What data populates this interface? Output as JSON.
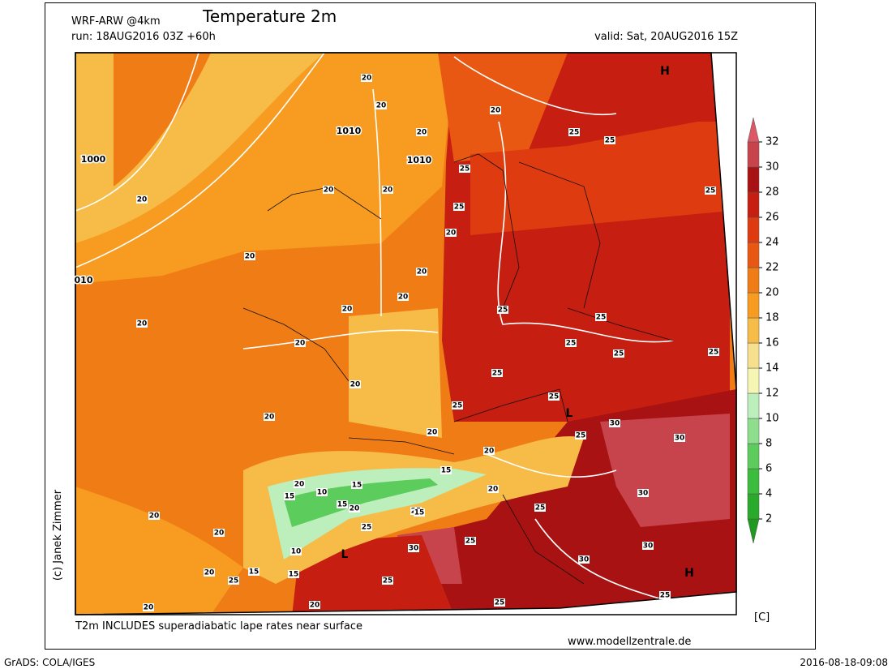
{
  "header": {
    "model": "WRF-ARW @4km",
    "title": "Temperature 2m",
    "run": "run: 18AUG2016 03Z +60h",
    "valid": "valid: Sat, 20AUG2016 15Z"
  },
  "map": {
    "labels": [
      "H",
      "H",
      "L",
      "L",
      "1010",
      "1010",
      "1000",
      "010",
      "20",
      "20",
      "20",
      "20",
      "20",
      "20",
      "20",
      "20",
      "20",
      "20",
      "20",
      "20",
      "20",
      "20",
      "20",
      "20",
      "20",
      "20",
      "20",
      "20",
      "20",
      "20",
      "20",
      "20",
      "20",
      "20",
      "25",
      "25",
      "25",
      "25",
      "25",
      "25",
      "25",
      "25",
      "25",
      "25",
      "25",
      "25",
      "25",
      "25",
      "25",
      "25",
      "25",
      "25",
      "25",
      "25",
      "25",
      "25",
      "30",
      "30",
      "30",
      "30",
      "30",
      "30",
      "15",
      "15",
      "15",
      "15",
      "15",
      "15",
      "15",
      "10",
      "10"
    ]
  },
  "colorbar": {
    "unit": "[C]",
    "ticks": [
      2,
      4,
      6,
      8,
      10,
      12,
      14,
      16,
      18,
      20,
      22,
      24,
      26,
      28,
      30,
      32
    ],
    "colors": [
      "#1e9a1e",
      "#2aaa2a",
      "#3cbc3c",
      "#5ccc5c",
      "#8ede8e",
      "#bcefbc",
      "#f6f6b4",
      "#f6e08e",
      "#f7bb48",
      "#f79c20",
      "#f07c16",
      "#e85812",
      "#de3c10",
      "#c61e10",
      "#a81212",
      "#c8444c",
      "#dc5864"
    ]
  },
  "footer": {
    "note": "T2m INCLUDES superadiabatic lape rates near surface",
    "credit": "(c) Janek Zimmer",
    "website": "www.modellzentrale.de",
    "software": "GrADS: COLA/IGES",
    "timestamp": "2016-08-18-09:08"
  }
}
